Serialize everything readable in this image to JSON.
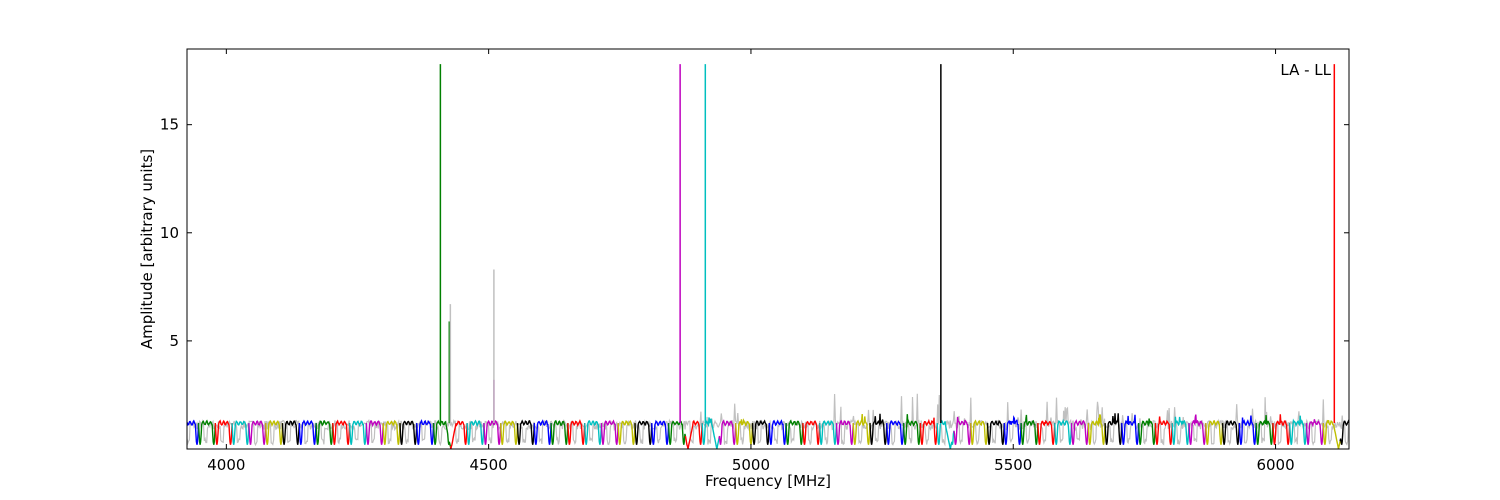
{
  "chart_data": {
    "type": "line",
    "xlabel": "Frequency [MHz]",
    "ylabel": "Amplitude [arbitrary units]",
    "annotation": "LA - LL",
    "xlim": [
      3925,
      6140
    ],
    "ylim": [
      0,
      18.5
    ],
    "xticks": [
      4000,
      4500,
      5000,
      5500,
      6000
    ],
    "yticks": [
      5,
      10,
      15
    ],
    "grid": false,
    "colors": [
      "#0000ff",
      "#008000",
      "#ff0000",
      "#00bfbf",
      "#bf00bf",
      "#bfbf00",
      "#000000"
    ],
    "background_color": "#c0c0c0",
    "band_width_mhz": 32,
    "band_dip_mhz": 6,
    "band_level": 1.2,
    "spikes": [
      {
        "x": 4408,
        "y": 17.8,
        "color": "#008000"
      },
      {
        "x": 4425,
        "y": 5.9,
        "color": "#008000"
      },
      {
        "x": 4510,
        "y": 3.2,
        "color": "#bf00bf"
      },
      {
        "x": 4510,
        "y": 8.3,
        "color": "#c0c0c0"
      },
      {
        "x": 4427,
        "y": 6.7,
        "color": "#c0c0c0"
      },
      {
        "x": 4865,
        "y": 17.8,
        "color": "#bf00bf"
      },
      {
        "x": 4913,
        "y": 17.8,
        "color": "#00bfbf"
      },
      {
        "x": 5362,
        "y": 17.8,
        "color": "#000000"
      },
      {
        "x": 6112,
        "y": 17.8,
        "color": "#ff0000"
      }
    ],
    "noise_regions": [
      {
        "from": 4900,
        "to": 4990,
        "peak": 2.5
      },
      {
        "from": 5150,
        "to": 5420,
        "peak": 2.6
      },
      {
        "from": 5480,
        "to": 5850,
        "peak": 2.4
      },
      {
        "from": 5920,
        "to": 6140,
        "peak": 2.4
      }
    ],
    "deep_dips": [
      4428,
      4880,
      4935,
      5380,
      6120
    ]
  }
}
